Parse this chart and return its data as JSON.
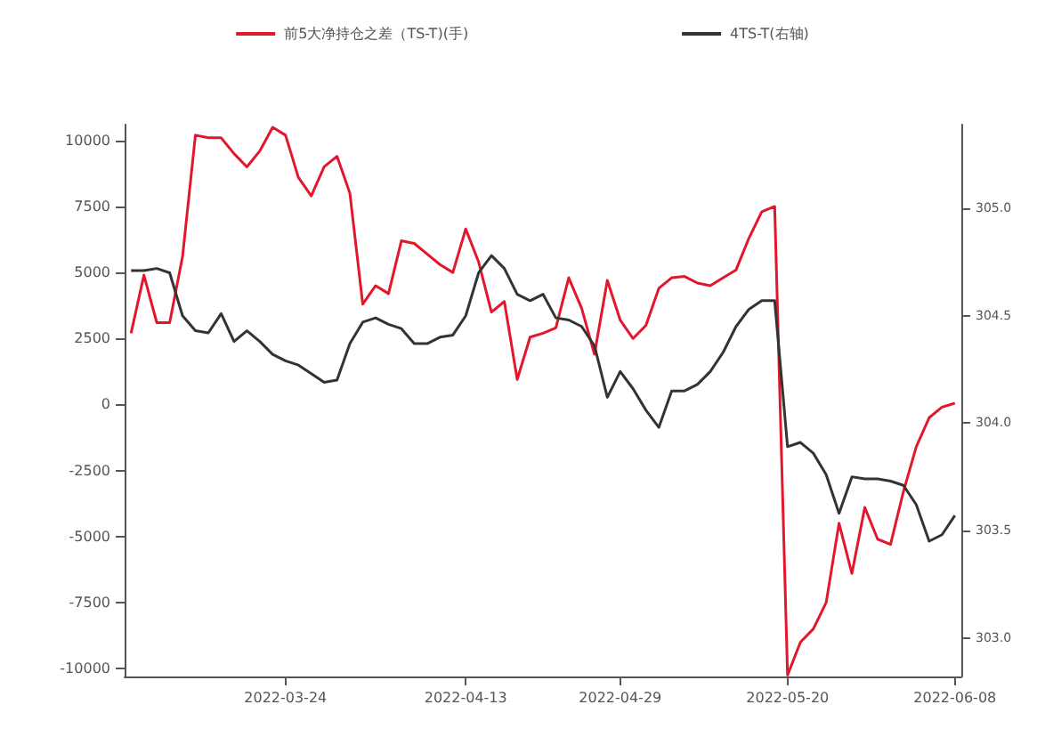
{
  "chart_data": {
    "type": "line",
    "categories": [
      null,
      null,
      null,
      null,
      null,
      null,
      null,
      null,
      null,
      null,
      null,
      null,
      "2022-03-24",
      null,
      null,
      null,
      null,
      null,
      null,
      null,
      null,
      null,
      null,
      null,
      null,
      null,
      "2022-04-13",
      null,
      null,
      null,
      null,
      null,
      null,
      null,
      null,
      null,
      null,
      null,
      "2022-04-29",
      null,
      null,
      null,
      null,
      null,
      null,
      null,
      null,
      null,
      null,
      null,
      null,
      "2022-05-20",
      null,
      null,
      null,
      null,
      null,
      null,
      null,
      null,
      null,
      null,
      null,
      null,
      "2022-06-08"
    ],
    "series": [
      {
        "name": "前5大净持仓之差（TS-T)(手)",
        "color": "#e3172b",
        "values": [
          2700,
          4900,
          3100,
          3100,
          5600,
          10200,
          10100,
          10100,
          9500,
          9000,
          9600,
          10500,
          10200,
          8600,
          7900,
          9000,
          9400,
          8000,
          3800,
          4500,
          4200,
          6200,
          6100,
          5700,
          5300,
          5000,
          6650,
          5400,
          3500,
          3900,
          950,
          2550,
          2700,
          2900,
          4800,
          3650,
          1900,
          4700,
          3200,
          2500,
          3000,
          4400,
          4800,
          4850,
          4600,
          4500,
          4800,
          5100,
          6300,
          7300,
          7500,
          -10250,
          -9000,
          -8500,
          -7500,
          -4500,
          -6400,
          -3900,
          -5100,
          -5300,
          -3300,
          -1600,
          -500,
          -100,
          50
        ]
      },
      {
        "name": "4TS-T(右轴)",
        "color": "#333333",
        "axis": "y2",
        "values": [
          304.71,
          304.71,
          304.72,
          304.7,
          304.5,
          304.43,
          304.42,
          304.51,
          304.38,
          304.43,
          304.38,
          304.32,
          304.29,
          304.27,
          304.23,
          304.19,
          304.2,
          304.37,
          304.47,
          304.49,
          304.46,
          304.44,
          304.37,
          304.37,
          304.4,
          304.41,
          304.5,
          304.7,
          304.78,
          304.72,
          304.6,
          304.57,
          304.6,
          304.49,
          304.48,
          304.45,
          304.36,
          304.12,
          304.24,
          304.16,
          304.06,
          303.98,
          304.15,
          304.15,
          304.18,
          304.24,
          304.33,
          304.45,
          304.53,
          304.57,
          304.57,
          303.89,
          303.91,
          303.86,
          303.76,
          303.58,
          303.75,
          303.74,
          303.74,
          303.73,
          303.71,
          303.62,
          303.45,
          303.48,
          303.57
        ]
      }
    ],
    "ylim": [
      -10300,
      10600
    ],
    "yticks": [
      -10000,
      -7500,
      -5000,
      -2500,
      0,
      2500,
      5000,
      7500,
      10000
    ],
    "y2lim": [
      302.82,
      305.39
    ],
    "y2ticks": [
      {
        "value": 303,
        "label": "303.0"
      },
      {
        "value": 303.5,
        "label": "303.5"
      },
      {
        "value": 304,
        "label": "304.0"
      },
      {
        "value": 304.5,
        "label": "304.5"
      },
      {
        "value": 305,
        "label": "305.0"
      }
    ],
    "grid": false,
    "legend": "top",
    "marker": "none",
    "line_style": "solid"
  }
}
